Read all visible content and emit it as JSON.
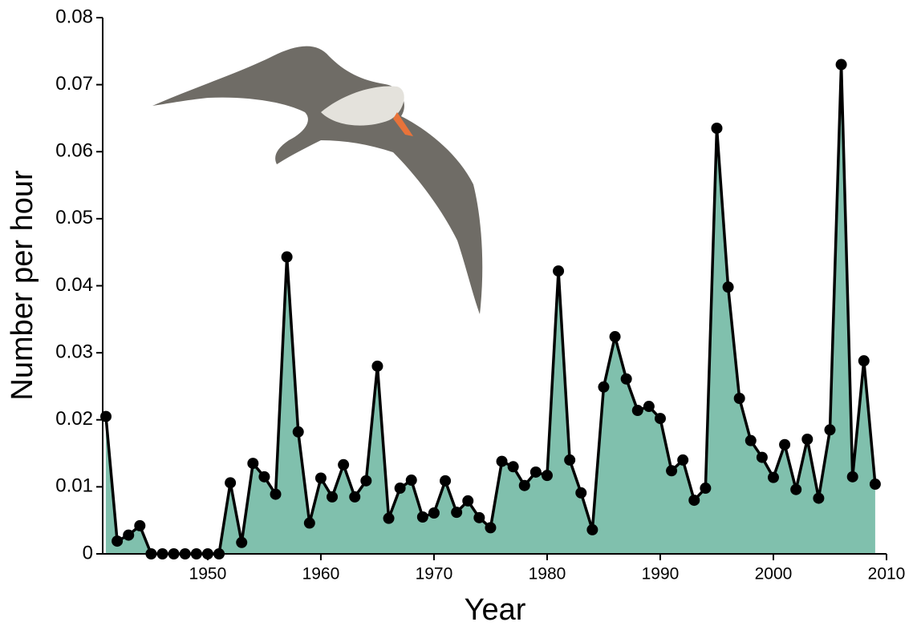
{
  "chart_data": {
    "type": "area-line",
    "x_label": "Year",
    "y_label": "Number per hour",
    "x": [
      1941,
      1942,
      1943,
      1944,
      1945,
      1946,
      1947,
      1948,
      1949,
      1950,
      1951,
      1952,
      1953,
      1954,
      1955,
      1956,
      1957,
      1958,
      1959,
      1960,
      1961,
      1962,
      1963,
      1964,
      1965,
      1966,
      1967,
      1968,
      1969,
      1970,
      1971,
      1972,
      1973,
      1974,
      1975,
      1976,
      1977,
      1978,
      1979,
      1980,
      1981,
      1982,
      1983,
      1984,
      1985,
      1986,
      1987,
      1988,
      1989,
      1990,
      1991,
      1992,
      1993,
      1994,
      1995,
      1996,
      1997,
      1998,
      1999,
      2000,
      2001,
      2002,
      2003,
      2004,
      2005,
      2006,
      2007,
      2008,
      2009
    ],
    "values": [
      0.0205,
      0.0019,
      0.0028,
      0.0042,
      0,
      0,
      0,
      0,
      0,
      0,
      0,
      0.0106,
      0.0017,
      0.0135,
      0.0115,
      0.0089,
      0.0443,
      0.0182,
      0.0046,
      0.0113,
      0.0085,
      0.0133,
      0.0085,
      0.0109,
      0.028,
      0.0053,
      0.0098,
      0.011,
      0.0055,
      0.0061,
      0.0109,
      0.0062,
      0.0079,
      0.0054,
      0.0039,
      0.0138,
      0.013,
      0.0102,
      0.0122,
      0.0117,
      0.0422,
      0.014,
      0.0091,
      0.0036,
      0.0249,
      0.0324,
      0.0261,
      0.0214,
      0.022,
      0.0202,
      0.0124,
      0.014,
      0.008,
      0.0098,
      0.0635,
      0.0398,
      0.0232,
      0.0169,
      0.0144,
      0.0114,
      0.0163,
      0.0096,
      0.0171,
      0.0083,
      0.0185,
      0.073,
      0.0115,
      0.0288,
      0.0104
    ],
    "color": "#80c0ad",
    "line_color": "#000000",
    "xlim": [
      1941,
      2010
    ],
    "ylim": [
      0,
      0.08
    ],
    "xticks": [
      1950,
      1960,
      1970,
      1980,
      1990,
      2000,
      2010
    ],
    "yticks": [
      0,
      0.01,
      0.02,
      0.03,
      0.04,
      0.05,
      0.06,
      0.07,
      0.08
    ]
  }
}
